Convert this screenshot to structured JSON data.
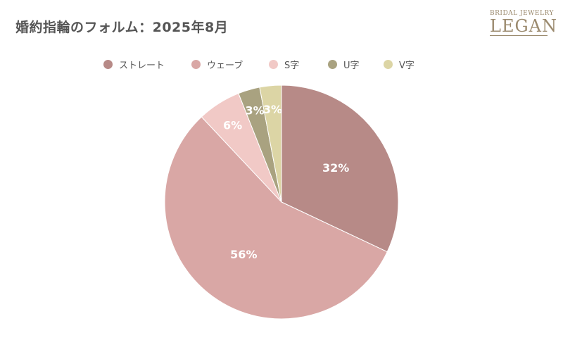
{
  "title": "婚約指輪のフォルム：2025年8月",
  "logo": {
    "subtitle": "BRIDAL JEWELRY",
    "name": "LEGAN"
  },
  "chart_data": {
    "type": "pie",
    "title": "婚約指輪のフォルム：2025年8月",
    "categories": [
      "ストレート",
      "ウェーブ",
      "S字",
      "U字",
      "V字"
    ],
    "values": [
      32,
      56,
      6,
      3,
      3
    ],
    "value_labels": [
      "32%",
      "56%",
      "6%",
      "3%",
      "3%"
    ],
    "colors": [
      "#b78a87",
      "#d9a7a5",
      "#f1c9c6",
      "#a9a280",
      "#dcd5a5"
    ],
    "legend_position": "top",
    "start_angle": "12 o'clock, clockwise"
  }
}
